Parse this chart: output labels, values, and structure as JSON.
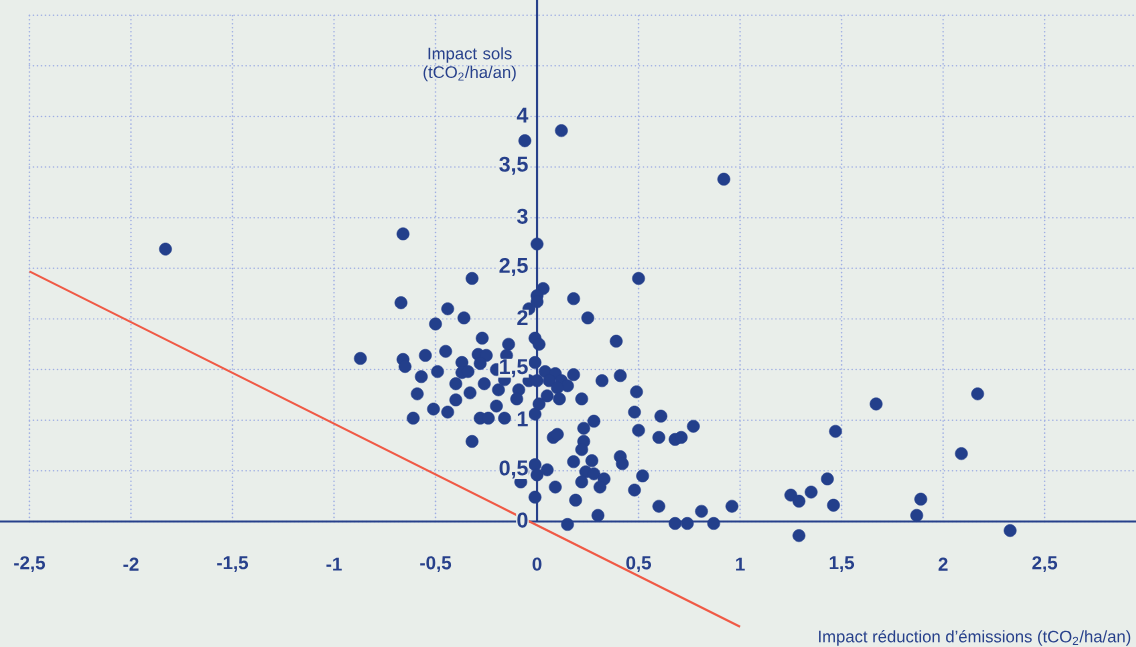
{
  "chart_data": {
    "type": "scatter",
    "xlabel": "Impact réduction d’émissions (tCO$_{2}$/ha/an)",
    "ylabel": "Impact sols (tCO$_{2}$/ha/an)",
    "xlim": [
      -2.645,
      2.95
    ],
    "ylim": [
      -1.24,
      5.15
    ],
    "xticks": [
      {
        "value": -2.5,
        "label": "-2,5"
      },
      {
        "value": -2,
        "label": "-2"
      },
      {
        "value": -1.5,
        "label": "-1,5"
      },
      {
        "value": -1,
        "label": "-1"
      },
      {
        "value": -0.5,
        "label": "-0,5"
      },
      {
        "value": 0,
        "label": "0"
      },
      {
        "value": 0.5,
        "label": "0,5"
      },
      {
        "value": 1,
        "label": "1"
      },
      {
        "value": 1.5,
        "label": "1,5"
      },
      {
        "value": 2,
        "label": "2"
      },
      {
        "value": 2.5,
        "label": "2,5"
      }
    ],
    "yticks": [
      {
        "value": 0,
        "label": "0"
      },
      {
        "value": 0.5,
        "label": "0,5"
      },
      {
        "value": 1,
        "label": "1"
      },
      {
        "value": 1.5,
        "label": "1,5"
      },
      {
        "value": 2,
        "label": "2"
      },
      {
        "value": 2.5,
        "label": "2,5"
      },
      {
        "value": 3,
        "label": "3"
      },
      {
        "value": 3.5,
        "label": "3,5"
      },
      {
        "value": 4,
        "label": "4"
      },
      {
        "value": 4.5,
        "label": null
      },
      {
        "value": 5,
        "label": null
      }
    ],
    "grid": true,
    "marker": "circle",
    "series": [
      {
        "color": "#233f8b",
        "x": [
          -1.83,
          -0.66,
          -0.06,
          0.12,
          0.92,
          0,
          -0.32,
          0.5,
          -0.67,
          0.03,
          0,
          -0.04,
          -0.44,
          -0.36,
          -0.5,
          0.18,
          0.25,
          -0.87,
          -0.66,
          -0.65,
          -0.55,
          -0.45,
          -0.57,
          -0.49,
          -0.59,
          -0.4,
          -0.33,
          -0.4,
          -0.37,
          -0.37,
          -0.34,
          -0.27,
          -0.29,
          -0.25,
          -0.28,
          -0.14,
          -0.15,
          -0.2,
          -0.16,
          -0.26,
          -0.19,
          -0.09,
          -0.1,
          -0.2,
          -0.51,
          -0.44,
          -0.61,
          -0.28,
          -0.24,
          -0.16,
          -0.32,
          -0.01,
          -0.04,
          -0.01,
          -0.01,
          -0.07,
          -0.08,
          -0.01,
          -0.01,
          0,
          0,
          0.01,
          0.04,
          0.09,
          0,
          0.06,
          0.12,
          0.15,
          0.18,
          0.1,
          0.05,
          0.11,
          0.01,
          0.22,
          0.32,
          0.41,
          0.39,
          0.49,
          0.48,
          0.5,
          0.61,
          0.6,
          0.68,
          0.71,
          0.77,
          0.28,
          0.23,
          0.08,
          0.1,
          0.23,
          0.22,
          0.41,
          0.42,
          0.27,
          0.18,
          0.05,
          0.24,
          0.28,
          0.33,
          0.22,
          0.31,
          0.52,
          0.48,
          0.09,
          0.19,
          0.3,
          0.15,
          0.6,
          0.68,
          0.74,
          0.81,
          0.87,
          0.96,
          1.67,
          2.17,
          1.47,
          2.09,
          1.43,
          1.25,
          1.29,
          1.35,
          1.46,
          1.29,
          1.89,
          1.87,
          2.33
        ],
        "values": [
          2.69,
          2.84,
          3.76,
          3.86,
          3.38,
          2.74,
          2.4,
          2.4,
          2.16,
          2.3,
          2.23,
          2.1,
          2.1,
          2.01,
          1.95,
          2.2,
          2.01,
          1.61,
          1.6,
          1.53,
          1.64,
          1.68,
          1.43,
          1.48,
          1.26,
          1.2,
          1.27,
          1.36,
          1.57,
          1.47,
          1.48,
          1.81,
          1.65,
          1.64,
          1.56,
          1.75,
          1.64,
          1.5,
          1.4,
          1.36,
          1.3,
          1.3,
          1.21,
          1.14,
          1.11,
          1.08,
          1.02,
          1.02,
          1.02,
          1.02,
          0.79,
          1.06,
          1.39,
          1.57,
          1.81,
          0.49,
          0.39,
          0.24,
          0.56,
          0.46,
          2.17,
          1.75,
          1.48,
          1.46,
          1.39,
          1.39,
          1.39,
          1.34,
          1.45,
          1.32,
          1.24,
          1.21,
          1.16,
          1.21,
          1.39,
          1.44,
          1.78,
          1.28,
          1.08,
          0.9,
          1.04,
          0.83,
          0.81,
          0.83,
          0.94,
          0.99,
          0.92,
          0.83,
          0.86,
          0.79,
          0.71,
          0.64,
          0.57,
          0.6,
          0.59,
          0.51,
          0.49,
          0.47,
          0.42,
          0.39,
          0.34,
          0.45,
          0.31,
          0.34,
          0.21,
          0.06,
          -0.03,
          0.15,
          -0.02,
          -0.02,
          0.1,
          -0.02,
          0.15,
          1.16,
          1.26,
          0.89,
          0.67,
          0.42,
          0.26,
          0.2,
          0.29,
          0.16,
          -0.14,
          0.22,
          0.06,
          -0.09
        ]
      },
      {
        "type": "line",
        "color": "#f05a46",
        "line_style": "solid",
        "marker": "none",
        "x": [
          -2.5,
          1.0
        ],
        "values": [
          2.47,
          -1.04
        ]
      }
    ]
  }
}
